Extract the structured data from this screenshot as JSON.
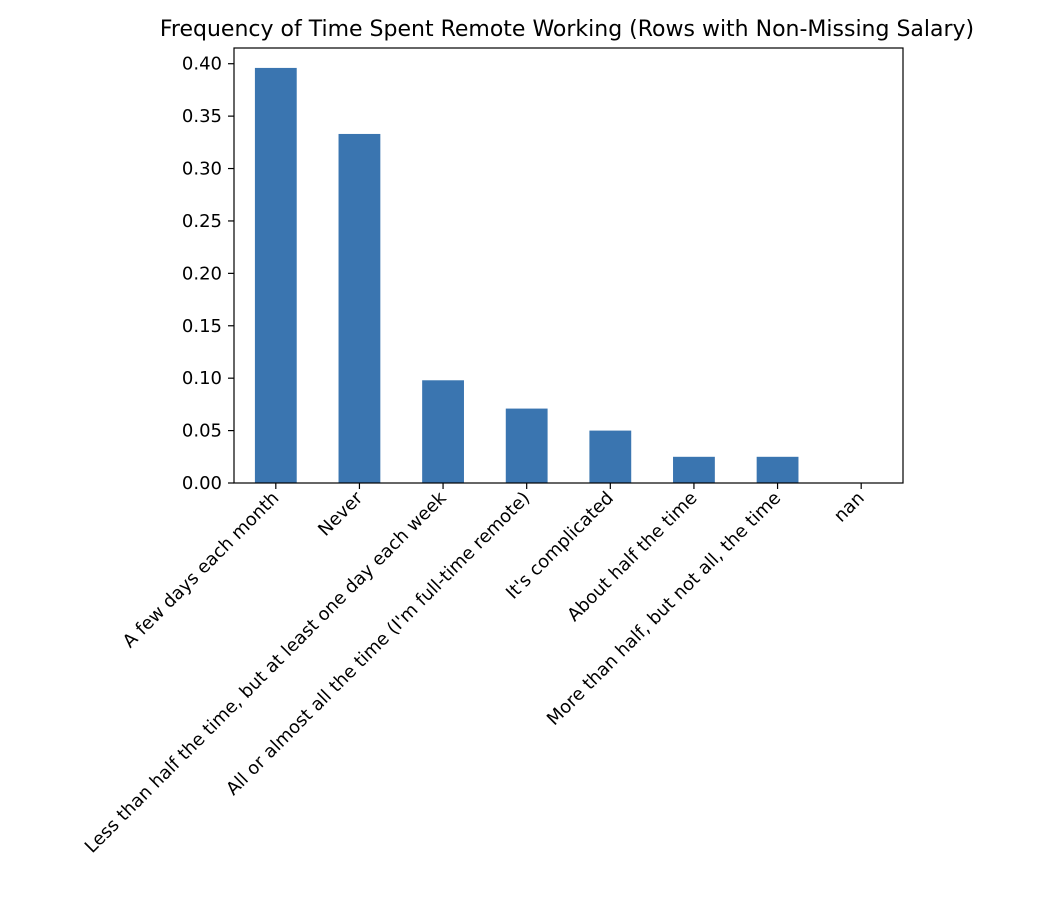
{
  "chart_data": {
    "type": "bar",
    "title": "Frequency of Time Spent Remote Working (Rows with Non-Missing Salary)",
    "xlabel": "",
    "ylabel": "",
    "categories": [
      "A few days each month",
      "Never",
      "Less than half the time, but at least one day each week",
      "All or almost all the time (I'm full-time remote)",
      "It's complicated",
      "About half the time",
      "More than half, but not all, the time",
      "nan"
    ],
    "values": [
      0.396,
      0.333,
      0.098,
      0.071,
      0.05,
      0.025,
      0.025,
      0.0
    ],
    "ylim": [
      0,
      0.415
    ],
    "yticks": [
      0.0,
      0.05,
      0.1,
      0.15,
      0.2,
      0.25,
      0.3,
      0.35,
      0.4
    ],
    "ytick_labels": [
      "0.00",
      "0.05",
      "0.10",
      "0.15",
      "0.20",
      "0.25",
      "0.30",
      "0.35",
      "0.40"
    ],
    "bar_color": "#3a75b0",
    "grid": false,
    "legend": "none"
  }
}
